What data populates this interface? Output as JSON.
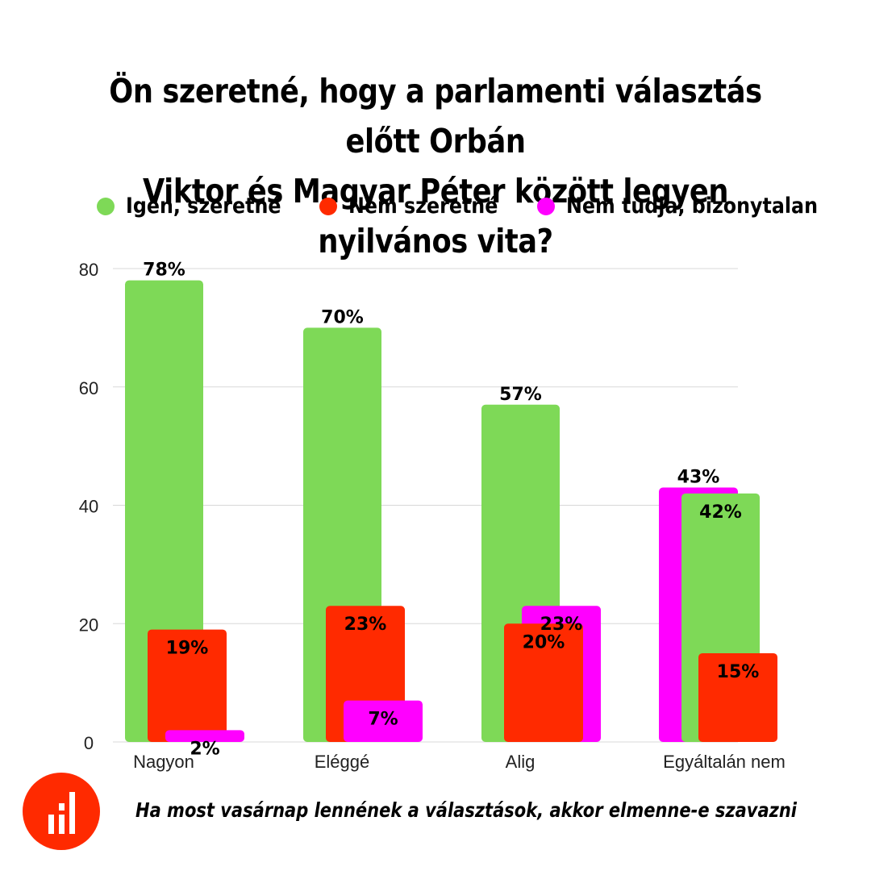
{
  "title_lines": [
    "Ön szeretné, hogy a parlamenti választás előtt Orbán",
    "Viktor és Magyar Péter között legyen nyilvános vita?"
  ],
  "colors": {
    "green": "#7ed957",
    "red": "#ff2a00",
    "magenta": "#ff00ff",
    "logo": "#ff2a00"
  },
  "logo_icon": "bar-chart-icon",
  "chart_data": {
    "type": "bar",
    "title": "Ön szeretné, hogy a parlamenti választás előtt Orbán Viktor és Magyar Péter között legyen nyilvános vita?",
    "xlabel": "Ha most vasárnap lennének a választások, akkor elmenne-e szavazni",
    "ylabel": "",
    "ylim": [
      0,
      80
    ],
    "yticks": [
      0,
      20,
      40,
      60,
      80
    ],
    "grid": true,
    "legend_position": "top",
    "categories": [
      "Nagyon",
      "Eléggé",
      "Alig",
      "Egyáltalán nem"
    ],
    "series": [
      {
        "name": "Igen, szeretné",
        "color": "#7ed957",
        "values": [
          78,
          70,
          57,
          42
        ],
        "labels": [
          "78%",
          "70%",
          "57%",
          "42%"
        ]
      },
      {
        "name": "Nem szeretné",
        "color": "#ff2a00",
        "values": [
          19,
          23,
          20,
          15
        ],
        "labels": [
          "19%",
          "23%",
          "20%",
          "15%"
        ]
      },
      {
        "name": "Nem tudja, bizonytalan",
        "color": "#ff00ff",
        "values": [
          2,
          7,
          23,
          43
        ],
        "labels": [
          "2%",
          "7%",
          "23%",
          "43%"
        ]
      }
    ]
  }
}
